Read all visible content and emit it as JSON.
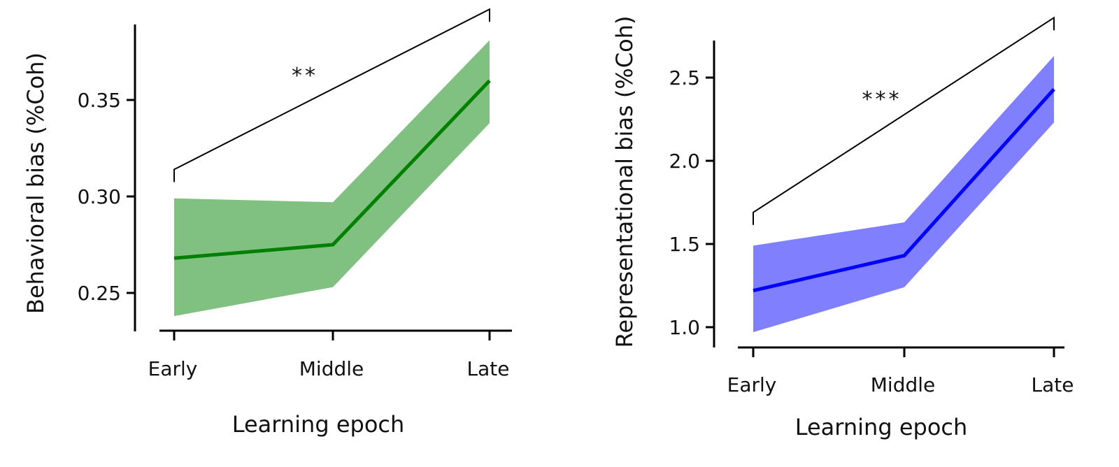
{
  "chart_data": [
    {
      "type": "line",
      "title": "",
      "xlabel": "Learning epoch",
      "ylabel": "Behavioral bias (%Coh)",
      "categories": [
        "Early",
        "Middle",
        "Late"
      ],
      "yticks": [
        "0.25",
        "0.30",
        "0.35"
      ],
      "ytick_values": [
        0.25,
        0.3,
        0.35
      ],
      "ylim": [
        0.231,
        0.39
      ],
      "grid": false,
      "legend": "none",
      "series": [
        {
          "name": "Behavioral bias",
          "color": "#008000",
          "band_color": "#80c080",
          "values": [
            0.268,
            0.275,
            0.36
          ],
          "upper": [
            0.299,
            0.297,
            0.381
          ],
          "lower": [
            0.238,
            0.253,
            0.338
          ]
        }
      ],
      "annotation": {
        "text": "**",
        "from": "Early",
        "to": "Late",
        "bracket_y_start": 0.314,
        "bracket_y_end": 0.397
      }
    },
    {
      "type": "line",
      "title": "",
      "xlabel": "Learning epoch",
      "ylabel": "Representational bias (%Coh)",
      "categories": [
        "Early",
        "Middle",
        "Late"
      ],
      "yticks": [
        "1.0",
        "1.5",
        "2.0",
        "2.5"
      ],
      "ytick_values": [
        1.0,
        1.5,
        2.0,
        2.5
      ],
      "ylim": [
        0.88,
        2.72
      ],
      "grid": false,
      "legend": "none",
      "series": [
        {
          "name": "Representational bias",
          "color": "#0000ff",
          "band_color": "#8080ff",
          "values": [
            1.22,
            1.43,
            2.43
          ],
          "upper": [
            1.49,
            1.63,
            2.63
          ],
          "lower": [
            0.97,
            1.24,
            2.23
          ]
        }
      ],
      "annotation": {
        "text": "***",
        "from": "Early",
        "to": "Late",
        "bracket_y_start": 1.69,
        "bracket_y_end": 2.86
      }
    }
  ]
}
